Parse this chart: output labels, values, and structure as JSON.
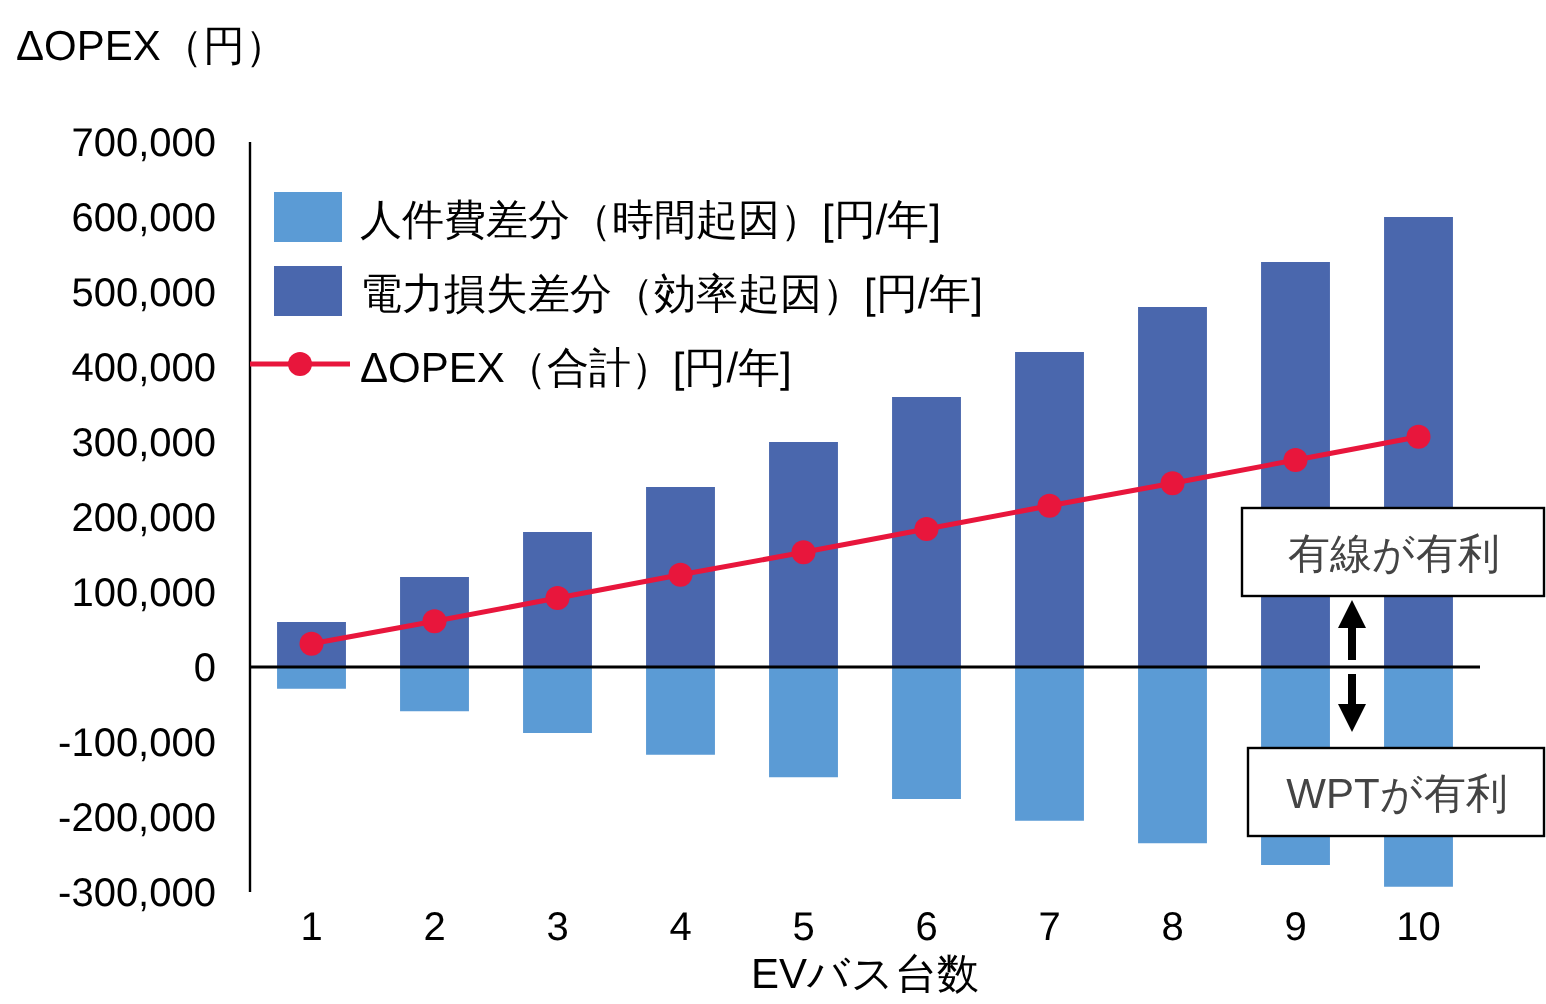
{
  "chart_data": {
    "type": "bar",
    "stacked": true,
    "ylabel": "ΔOPEX（円）",
    "xlabel": "EVバス台数",
    "categories": [
      "1",
      "2",
      "3",
      "4",
      "5",
      "6",
      "7",
      "8",
      "9",
      "10"
    ],
    "series": [
      {
        "name": "人件費差分（時間起因）[円/年]",
        "color": "#5b9bd5",
        "values": [
          -29000,
          -59000,
          -88000,
          -117000,
          -147000,
          -176000,
          -205000,
          -235000,
          -264000,
          -293000
        ]
      },
      {
        "name": "電力損失差分（効率起因）[円/年]",
        "color": "#4a67ad",
        "values": [
          60000,
          120000,
          180000,
          240000,
          300000,
          360000,
          420000,
          480000,
          540000,
          600000
        ]
      },
      {
        "name": "ΔOPEX（合計）[円/年]",
        "type": "line",
        "color": "#e8163c",
        "marker": "circle",
        "line_style": "solid",
        "values": [
          31000,
          61000,
          92000,
          123000,
          153000,
          184000,
          215000,
          245000,
          276000,
          307000
        ]
      }
    ],
    "ylim": [
      -300000,
      700000
    ],
    "yticks": [
      {
        "value": 700000,
        "label": "700,000"
      },
      {
        "value": 600000,
        "label": "600,000"
      },
      {
        "value": 500000,
        "label": "500,000"
      },
      {
        "value": 400000,
        "label": "400,000"
      },
      {
        "value": 300000,
        "label": "300,000"
      },
      {
        "value": 200000,
        "label": "200,000"
      },
      {
        "value": 100000,
        "label": "100,000"
      },
      0,
      {
        "value": -100000,
        "label": "-100,000"
      },
      {
        "value": -200000,
        "label": "-200,000"
      },
      {
        "value": -300000,
        "label": "-300,000"
      }
    ],
    "legend": "top left",
    "annotations": [
      "有線が有利",
      "WPTが有利"
    ]
  }
}
